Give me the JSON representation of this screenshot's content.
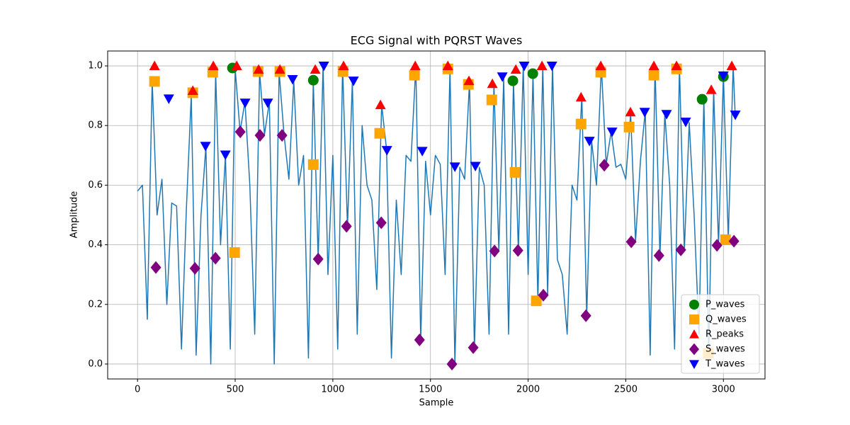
{
  "chart_data": {
    "type": "line",
    "title": "ECG Signal with PQRST Waves",
    "xlabel": "Sample",
    "ylabel": "Amplitude",
    "color": "#1f77b4",
    "grid": true,
    "legend": "lower right",
    "xlim": [
      -153,
      3213
    ],
    "ylim": [
      -0.05,
      1.05
    ],
    "xticks": [
      0,
      500,
      1000,
      1500,
      2000,
      2500,
      3000
    ],
    "yticks": [
      {
        "value": 0,
        "label": "0.0"
      },
      0.2,
      0.4,
      0.6,
      0.8,
      {
        "value": 1,
        "label": "1.0"
      }
    ],
    "x": [
      0,
      25,
      50,
      75,
      100,
      125,
      150,
      175,
      200,
      225,
      250,
      275,
      300,
      325,
      350,
      375,
      400,
      425,
      450,
      475,
      500,
      525,
      550,
      575,
      600,
      625,
      650,
      675,
      700,
      725,
      750,
      775,
      800,
      825,
      850,
      875,
      900,
      925,
      950,
      975,
      1000,
      1025,
      1050,
      1075,
      1100,
      1125,
      1150,
      1175,
      1200,
      1225,
      1250,
      1275,
      1300,
      1325,
      1350,
      1375,
      1400,
      1425,
      1450,
      1475,
      1500,
      1525,
      1550,
      1575,
      1600,
      1625,
      1650,
      1675,
      1700,
      1725,
      1750,
      1775,
      1800,
      1825,
      1850,
      1875,
      1900,
      1925,
      1950,
      1975,
      2000,
      2025,
      2050,
      2075,
      2100,
      2125,
      2150,
      2175,
      2200,
      2225,
      2250,
      2275,
      2300,
      2325,
      2350,
      2375,
      2400,
      2425,
      2450,
      2475,
      2500,
      2525,
      2550,
      2575,
      2600,
      2625,
      2650,
      2675,
      2700,
      2725,
      2750,
      2775,
      2800,
      2825,
      2850,
      2875,
      2900,
      2925,
      2950,
      2975,
      3000,
      3025,
      3050,
      3060
    ],
    "values": [
      0.58,
      0.6,
      0.15,
      0.95,
      0.5,
      0.62,
      0.2,
      0.54,
      0.53,
      0.05,
      0.52,
      0.9,
      0.03,
      0.5,
      0.73,
      0.0,
      0.98,
      0.4,
      0.7,
      0.05,
      0.99,
      0.78,
      0.88,
      0.6,
      0.1,
      0.98,
      0.77,
      0.88,
      0.0,
      0.98,
      0.77,
      0.62,
      0.95,
      0.6,
      0.7,
      0.02,
      0.95,
      0.35,
      1.0,
      0.3,
      0.7,
      0.05,
      1.0,
      0.46,
      0.95,
      0.1,
      0.8,
      0.6,
      0.55,
      0.25,
      0.87,
      0.72,
      0.02,
      0.55,
      0.3,
      0.7,
      0.68,
      1.0,
      0.08,
      0.68,
      0.5,
      0.7,
      0.67,
      0.3,
      0.99,
      0.0,
      0.66,
      0.62,
      0.95,
      0.05,
      0.66,
      0.6,
      0.1,
      0.94,
      0.38,
      0.96,
      0.1,
      0.95,
      0.38,
      1.0,
      0.3,
      0.97,
      0.21,
      1.0,
      0.23,
      1.0,
      0.35,
      0.3,
      0.1,
      0.6,
      0.55,
      0.9,
      0.16,
      0.75,
      0.6,
      1.0,
      0.67,
      0.78,
      0.66,
      0.67,
      0.62,
      0.84,
      0.41,
      0.68,
      0.85,
      0.03,
      1.0,
      0.36,
      0.84,
      0.6,
      0.05,
      1.0,
      0.38,
      0.81,
      0.5,
      0.1,
      0.89,
      0.03,
      0.92,
      0.4,
      0.97,
      0.42,
      1.0,
      0.84
    ],
    "markers": [
      {
        "name": "P_waves",
        "color": "green",
        "marker": "circle",
        "x": [
          486,
          900,
          1922,
          2024,
          2891,
          3000
        ],
        "values": [
          0.993,
          0.952,
          0.95,
          0.974,
          0.888,
          0.964
        ]
      },
      {
        "name": "Q_waves",
        "color": "orange",
        "marker": "square",
        "x": [
          87,
          283,
          385,
          497,
          617,
          729,
          900,
          1052,
          1240,
          1418,
          1589,
          1694,
          1814,
          1933,
          2042,
          2271,
          2372,
          2517,
          2644,
          2760,
          2923,
          3011
        ],
        "values": [
          0.948,
          0.91,
          0.979,
          0.374,
          0.981,
          0.981,
          0.669,
          0.981,
          0.774,
          0.969,
          0.99,
          0.938,
          0.886,
          0.643,
          0.212,
          0.805,
          0.979,
          0.795,
          0.969,
          0.99,
          0.036,
          0.417
        ]
      },
      {
        "name": "R_peaks",
        "color": "red",
        "marker": "triangle-up",
        "x": [
          87,
          283,
          388,
          508,
          620,
          729,
          910,
          1055,
          1244,
          1422,
          1589,
          1697,
          1817,
          1937,
          2071,
          2271,
          2372,
          2524,
          2644,
          2760,
          2938,
          3043
        ],
        "values": [
          1.0,
          0.917,
          1.0,
          1.0,
          0.988,
          0.988,
          0.988,
          1.0,
          0.869,
          1.0,
          1.0,
          0.95,
          0.94,
          0.988,
          1.0,
          0.895,
          1.0,
          0.845,
          1.0,
          1.0,
          0.92,
          1.0
        ]
      },
      {
        "name": "S_waves",
        "color": "purple",
        "marker": "diamond",
        "x": [
          94,
          294,
          399,
          526,
          627,
          740,
          925,
          1070,
          1248,
          1444,
          1610,
          1719,
          1828,
          1948,
          2078,
          2296,
          2390,
          2528,
          2670,
          2782,
          2967,
          3054
        ],
        "values": [
          0.324,
          0.321,
          0.355,
          0.779,
          0.767,
          0.767,
          0.352,
          0.462,
          0.474,
          0.081,
          0.0,
          0.055,
          0.379,
          0.381,
          0.231,
          0.162,
          0.667,
          0.41,
          0.364,
          0.383,
          0.398,
          0.412
        ]
      },
      {
        "name": "T_waves",
        "color": "blue",
        "marker": "triangle-down",
        "x": [
          160,
          348,
          450,
          551,
          667,
          794,
          954,
          1106,
          1277,
          1458,
          1625,
          1730,
          1868,
          1980,
          2122,
          2314,
          2430,
          2597,
          2709,
          2807,
          3000,
          3061
        ],
        "values": [
          0.89,
          0.731,
          0.702,
          0.876,
          0.876,
          0.955,
          1.0,
          0.95,
          0.717,
          0.714,
          0.662,
          0.664,
          0.964,
          1.0,
          1.0,
          0.748,
          0.779,
          0.845,
          0.838,
          0.812,
          0.967,
          0.836
        ]
      }
    ]
  }
}
